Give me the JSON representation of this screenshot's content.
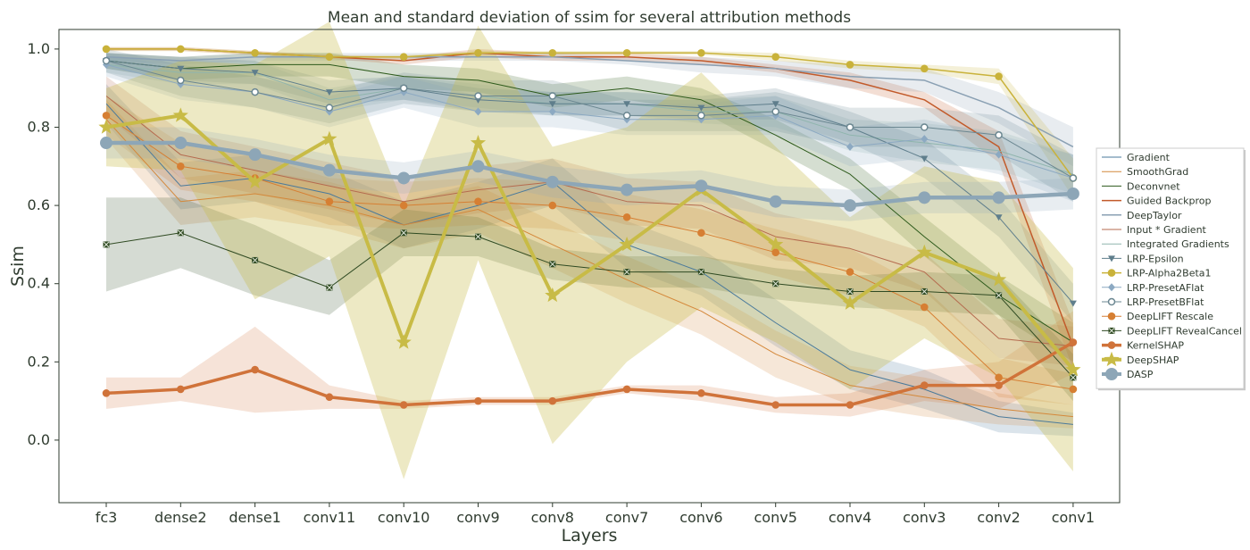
{
  "chart_data": {
    "type": "line",
    "title": "Mean and standard deviation of ssim for several attribution methods",
    "xlabel": "Layers",
    "ylabel": "Ssim",
    "categories": [
      "fc3",
      "dense2",
      "dense1",
      "conv11",
      "conv10",
      "conv9",
      "conv8",
      "conv7",
      "conv6",
      "conv5",
      "conv4",
      "conv3",
      "conv2",
      "conv1"
    ],
    "ylim": [
      -0.16,
      1.05
    ],
    "yticks": [
      0.0,
      0.2,
      0.4,
      0.6,
      0.8,
      1.0
    ],
    "ytick_labels": [
      "0.0",
      "0.2",
      "0.4",
      "0.6",
      "0.8",
      "1.0"
    ],
    "grid": false,
    "legend_position": "right",
    "series": [
      {
        "name": "Gradient",
        "color": "#4a7a9b",
        "marker": "none",
        "width": 1,
        "values": [
          0.86,
          0.65,
          0.67,
          0.63,
          0.55,
          0.6,
          0.66,
          0.5,
          0.43,
          0.3,
          0.18,
          0.13,
          0.06,
          0.04
        ],
        "std": [
          0.05,
          0.06,
          0.06,
          0.06,
          0.06,
          0.06,
          0.06,
          0.06,
          0.06,
          0.06,
          0.05,
          0.05,
          0.04,
          0.03
        ]
      },
      {
        "name": "SmoothGrad",
        "color": "#d4883a",
        "marker": "none",
        "width": 1,
        "values": [
          0.82,
          0.61,
          0.63,
          0.6,
          0.55,
          0.59,
          0.5,
          0.41,
          0.33,
          0.22,
          0.14,
          0.11,
          0.08,
          0.06
        ],
        "std": [
          0.05,
          0.06,
          0.06,
          0.06,
          0.06,
          0.06,
          0.06,
          0.06,
          0.06,
          0.06,
          0.05,
          0.05,
          0.04,
          0.03
        ]
      },
      {
        "name": "Deconvnet",
        "color": "#2d5a1b",
        "marker": "none",
        "width": 1,
        "values": [
          0.97,
          0.95,
          0.96,
          0.96,
          0.93,
          0.92,
          0.88,
          0.9,
          0.87,
          0.78,
          0.68,
          0.52,
          0.37,
          0.25
        ],
        "std": [
          0.02,
          0.03,
          0.03,
          0.03,
          0.03,
          0.03,
          0.03,
          0.03,
          0.03,
          0.04,
          0.04,
          0.05,
          0.05,
          0.05
        ]
      },
      {
        "name": "Guided Backprop",
        "color": "#c25a2a",
        "marker": "none",
        "width": 1.5,
        "values": [
          1.0,
          1.0,
          0.99,
          0.98,
          0.97,
          0.99,
          0.98,
          0.98,
          0.97,
          0.95,
          0.92,
          0.87,
          0.75,
          0.24
        ],
        "std": [
          0.005,
          0.005,
          0.005,
          0.005,
          0.01,
          0.01,
          0.01,
          0.01,
          0.01,
          0.01,
          0.02,
          0.02,
          0.04,
          0.06
        ]
      },
      {
        "name": "DeepTaylor",
        "color": "#8aa0b3",
        "marker": "none",
        "width": 1.5,
        "values": [
          0.98,
          0.97,
          0.98,
          0.98,
          0.98,
          0.98,
          0.98,
          0.97,
          0.96,
          0.95,
          0.93,
          0.92,
          0.85,
          0.75
        ],
        "std": [
          0.01,
          0.01,
          0.01,
          0.01,
          0.01,
          0.01,
          0.01,
          0.01,
          0.02,
          0.02,
          0.03,
          0.03,
          0.04,
          0.05
        ]
      },
      {
        "name": "Input * Gradient",
        "color": "#b56b4f",
        "marker": "none",
        "width": 1,
        "values": [
          0.88,
          0.73,
          0.69,
          0.65,
          0.61,
          0.64,
          0.66,
          0.61,
          0.6,
          0.52,
          0.49,
          0.43,
          0.26,
          0.24
        ],
        "std": [
          0.05,
          0.06,
          0.06,
          0.06,
          0.06,
          0.06,
          0.06,
          0.06,
          0.06,
          0.06,
          0.05,
          0.05,
          0.05,
          0.05
        ]
      },
      {
        "name": "Integrated Gradients",
        "color": "#8fb5ad",
        "marker": "none",
        "width": 1,
        "values": [
          0.96,
          0.94,
          0.94,
          0.87,
          0.9,
          0.88,
          0.86,
          0.86,
          0.84,
          0.84,
          0.78,
          0.76,
          0.74,
          0.68
        ],
        "std": [
          0.02,
          0.03,
          0.03,
          0.03,
          0.03,
          0.03,
          0.03,
          0.03,
          0.03,
          0.04,
          0.04,
          0.05,
          0.05,
          0.05
        ]
      },
      {
        "name": "LRP-Epsilon",
        "color": "#5f7e8c",
        "marker": "tri",
        "width": 1,
        "values": [
          0.97,
          0.95,
          0.94,
          0.89,
          0.9,
          0.87,
          0.86,
          0.86,
          0.85,
          0.86,
          0.8,
          0.72,
          0.57,
          0.35
        ],
        "std": [
          0.02,
          0.03,
          0.03,
          0.03,
          0.03,
          0.03,
          0.03,
          0.03,
          0.03,
          0.04,
          0.04,
          0.05,
          0.05,
          0.05
        ]
      },
      {
        "name": "LRP-Alpha2Beta1",
        "color": "#c9b23a",
        "marker": "circle",
        "width": 1.5,
        "values": [
          1.0,
          1.0,
          0.99,
          0.98,
          0.98,
          0.99,
          0.99,
          0.99,
          0.99,
          0.98,
          0.96,
          0.95,
          0.93,
          0.67
        ],
        "std": [
          0.005,
          0.005,
          0.005,
          0.005,
          0.005,
          0.005,
          0.005,
          0.005,
          0.005,
          0.01,
          0.01,
          0.01,
          0.02,
          0.05
        ]
      },
      {
        "name": "LRP-PresetAFlat",
        "color": "#8ca9c2",
        "marker": "diamond",
        "width": 1,
        "values": [
          0.96,
          0.91,
          0.89,
          0.84,
          0.89,
          0.84,
          0.84,
          0.82,
          0.82,
          0.83,
          0.75,
          0.77,
          0.73,
          0.67
        ],
        "std": [
          0.03,
          0.04,
          0.04,
          0.04,
          0.04,
          0.04,
          0.04,
          0.04,
          0.04,
          0.05,
          0.05,
          0.05,
          0.05,
          0.06
        ]
      },
      {
        "name": "LRP-PresetBFlat",
        "color": "#6b8791",
        "marker": "ocircle",
        "width": 1,
        "values": [
          0.97,
          0.92,
          0.89,
          0.85,
          0.9,
          0.88,
          0.88,
          0.83,
          0.83,
          0.84,
          0.8,
          0.8,
          0.78,
          0.67
        ],
        "std": [
          0.03,
          0.04,
          0.04,
          0.04,
          0.04,
          0.04,
          0.04,
          0.04,
          0.04,
          0.05,
          0.05,
          0.05,
          0.05,
          0.06
        ]
      },
      {
        "name": "DeepLIFT Rescale",
        "color": "#d67f33",
        "marker": "circle",
        "width": 1,
        "values": [
          0.83,
          0.7,
          0.67,
          0.61,
          0.6,
          0.61,
          0.6,
          0.57,
          0.53,
          0.48,
          0.43,
          0.34,
          0.16,
          0.13
        ],
        "std": [
          0.05,
          0.06,
          0.06,
          0.06,
          0.06,
          0.06,
          0.06,
          0.06,
          0.06,
          0.06,
          0.06,
          0.05,
          0.05,
          0.04
        ]
      },
      {
        "name": "DeepLIFT RevealCancel",
        "color": "#2f4a22",
        "marker": "xsquare",
        "width": 1,
        "values": [
          0.5,
          0.53,
          0.46,
          0.39,
          0.53,
          0.52,
          0.45,
          0.43,
          0.43,
          0.4,
          0.38,
          0.38,
          0.37,
          0.16
        ],
        "std": [
          0.12,
          0.09,
          0.09,
          0.07,
          0.06,
          0.05,
          0.04,
          0.04,
          0.04,
          0.04,
          0.04,
          0.05,
          0.05,
          0.06
        ]
      },
      {
        "name": "KernelSHAP",
        "color": "#d0733a",
        "marker": "circle",
        "width": 3.5,
        "values": [
          0.12,
          0.13,
          0.18,
          0.11,
          0.09,
          0.1,
          0.1,
          0.13,
          0.12,
          0.09,
          0.09,
          0.14,
          0.14,
          0.25
        ],
        "std": [
          0.04,
          0.03,
          0.11,
          0.03,
          0.01,
          0.01,
          0.01,
          0.01,
          0.02,
          0.02,
          0.03,
          0.04,
          0.06,
          0.08
        ]
      },
      {
        "name": "DeepSHAP",
        "color": "#c8bb46",
        "marker": "star",
        "width": 4,
        "values": [
          0.8,
          0.83,
          0.66,
          0.77,
          0.25,
          0.76,
          0.37,
          0.5,
          0.64,
          0.5,
          0.35,
          0.48,
          0.41,
          0.18
        ],
        "std": [
          0.1,
          0.14,
          0.3,
          0.3,
          0.35,
          0.3,
          0.38,
          0.3,
          0.3,
          0.25,
          0.22,
          0.22,
          0.25,
          0.26
        ]
      },
      {
        "name": "DASP",
        "color": "#8da6b7",
        "marker": "bigcircle",
        "width": 4.5,
        "values": [
          0.76,
          0.76,
          0.73,
          0.69,
          0.67,
          0.7,
          0.66,
          0.64,
          0.65,
          0.61,
          0.6,
          0.62,
          0.62,
          0.63
        ],
        "std": [
          0.04,
          0.04,
          0.04,
          0.04,
          0.04,
          0.04,
          0.04,
          0.04,
          0.04,
          0.04,
          0.04,
          0.04,
          0.04,
          0.04
        ]
      }
    ]
  }
}
